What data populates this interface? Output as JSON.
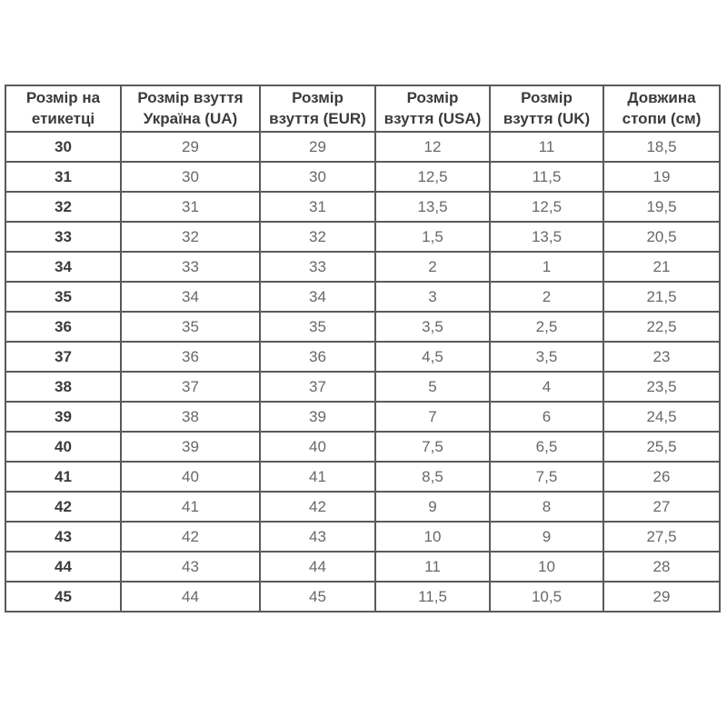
{
  "colors": {
    "background": "#ffffff",
    "border": "#5a5a5a",
    "header_text": "#3b3b3b",
    "cell_text": "#686868"
  },
  "table": {
    "headers": [
      "Розмір на\nетикетці",
      "Розмір взуття\nУкраїна (UA)",
      "Розмір\nвзуття (EUR)",
      "Розмір\nвзуття (USA)",
      "Розмір\nвзуття (UK)",
      "Довжина\nстопи (см)"
    ],
    "rows": [
      [
        "30",
        "29",
        "29",
        "12",
        "11",
        "18,5"
      ],
      [
        "31",
        "30",
        "30",
        "12,5",
        "11,5",
        "19"
      ],
      [
        "32",
        "31",
        "31",
        "13,5",
        "12,5",
        "19,5"
      ],
      [
        "33",
        "32",
        "32",
        "1,5",
        "13,5",
        "20,5"
      ],
      [
        "34",
        "33",
        "33",
        "2",
        "1",
        "21"
      ],
      [
        "35",
        "34",
        "34",
        "3",
        "2",
        "21,5"
      ],
      [
        "36",
        "35",
        "35",
        "3,5",
        "2,5",
        "22,5"
      ],
      [
        "37",
        "36",
        "36",
        "4,5",
        "3,5",
        "23"
      ],
      [
        "38",
        "37",
        "37",
        "5",
        "4",
        "23,5"
      ],
      [
        "39",
        "38",
        "39",
        "7",
        "6",
        "24,5"
      ],
      [
        "40",
        "39",
        "40",
        "7,5",
        "6,5",
        "25,5"
      ],
      [
        "41",
        "40",
        "41",
        "8,5",
        "7,5",
        "26"
      ],
      [
        "42",
        "41",
        "42",
        "9",
        "8",
        "27"
      ],
      [
        "43",
        "42",
        "43",
        "10",
        "9",
        "27,5"
      ],
      [
        "44",
        "43",
        "44",
        "11",
        "10",
        "28"
      ],
      [
        "45",
        "44",
        "45",
        "11,5",
        "10,5",
        "29"
      ]
    ]
  },
  "chart_data": {
    "type": "table",
    "title": "",
    "columns": [
      "Розмір на етикетці",
      "Розмір взуття Україна (UA)",
      "Розмір взуття (EUR)",
      "Розмір взуття (USA)",
      "Розмір взуття (UK)",
      "Довжина стопи (см)"
    ],
    "rows": [
      [
        "30",
        "29",
        "29",
        "12",
        "11",
        "18,5"
      ],
      [
        "31",
        "30",
        "30",
        "12,5",
        "11,5",
        "19"
      ],
      [
        "32",
        "31",
        "31",
        "13,5",
        "12,5",
        "19,5"
      ],
      [
        "33",
        "32",
        "32",
        "1,5",
        "13,5",
        "20,5"
      ],
      [
        "34",
        "33",
        "33",
        "2",
        "1",
        "21"
      ],
      [
        "35",
        "34",
        "34",
        "3",
        "2",
        "21,5"
      ],
      [
        "36",
        "35",
        "35",
        "3,5",
        "2,5",
        "22,5"
      ],
      [
        "37",
        "36",
        "36",
        "4,5",
        "3,5",
        "23"
      ],
      [
        "38",
        "37",
        "37",
        "5",
        "4",
        "23,5"
      ],
      [
        "39",
        "38",
        "39",
        "7",
        "6",
        "24,5"
      ],
      [
        "40",
        "39",
        "40",
        "7,5",
        "6,5",
        "25,5"
      ],
      [
        "41",
        "40",
        "41",
        "8,5",
        "7,5",
        "26"
      ],
      [
        "42",
        "41",
        "42",
        "9",
        "8",
        "27"
      ],
      [
        "43",
        "42",
        "43",
        "10",
        "9",
        "27,5"
      ],
      [
        "44",
        "43",
        "44",
        "11",
        "10",
        "28"
      ],
      [
        "45",
        "44",
        "45",
        "11,5",
        "10,5",
        "29"
      ]
    ]
  }
}
